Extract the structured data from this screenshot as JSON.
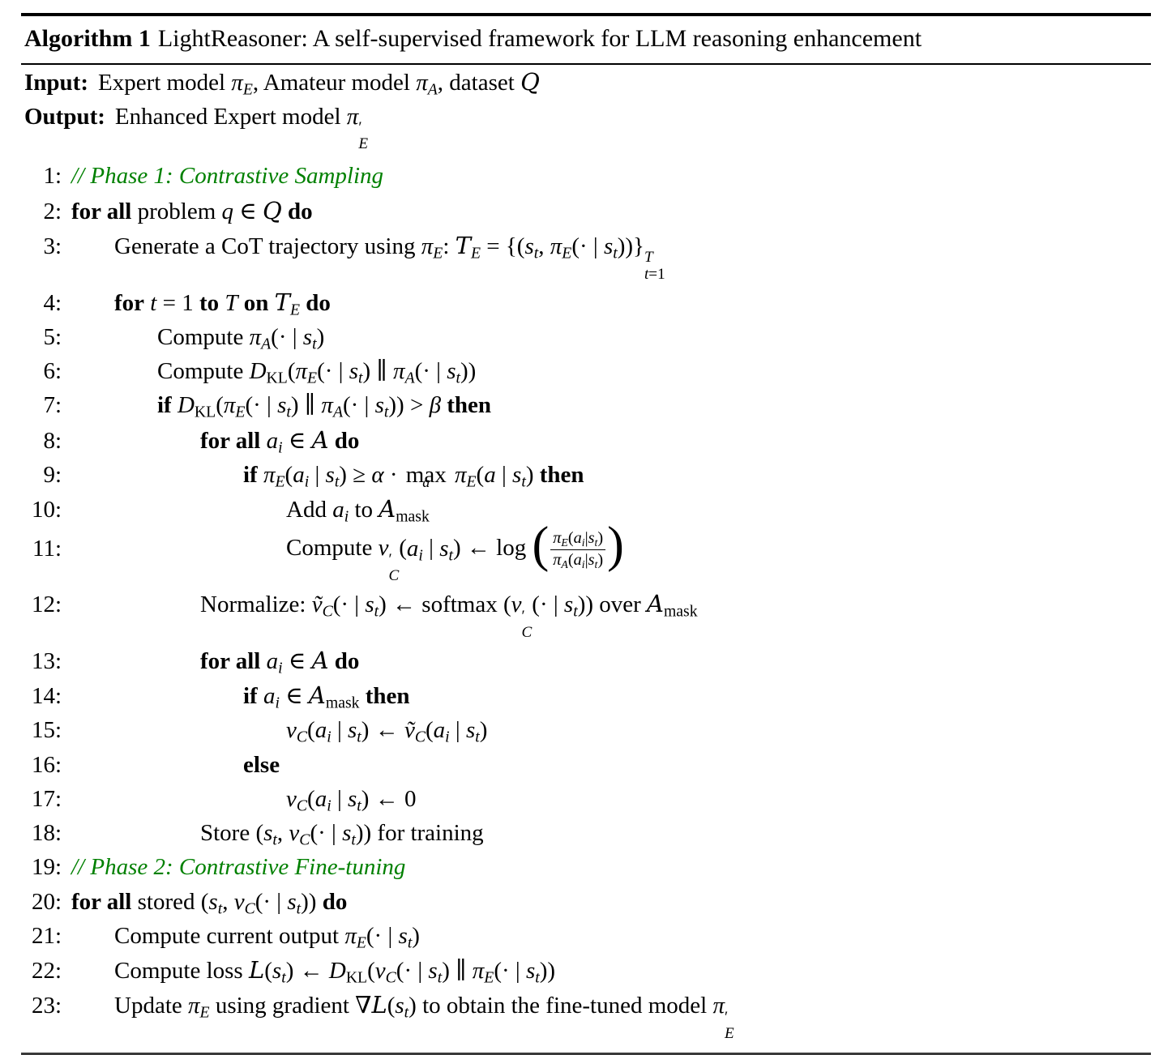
{
  "header": {
    "label": "Algorithm 1",
    "title": "LightReasoner: A self-supervised framework for LLM reasoning enhancement"
  },
  "io": {
    "input_label": "Input:",
    "input_html": "Expert model <i>π<sub>E</sub></i>, Amateur model <i>π<sub>A</sub></i>, dataset <span class='cal'>Q</span>",
    "output_label": "Output:",
    "output_html": "Enhanced Expert model <i>π</i><span class='ss'><span class='ss-t'>′</span><span class='ss-b'><i>E</i></span></span>"
  },
  "colors": {
    "comment_green": "#008000",
    "text": "#000000",
    "background": "#ffffff",
    "rule": "#000000"
  },
  "lines": [
    {
      "num": "1:",
      "indent": 0,
      "comment": true,
      "html": "// Phase 1: Contrastive Sampling"
    },
    {
      "num": "2:",
      "indent": 0,
      "comment": false,
      "html": "<b>for all</b> problem <i>q</i> ∈ <span class='cal'>Q</span> <b>do</b>"
    },
    {
      "num": "3:",
      "indent": 1,
      "comment": false,
      "html": "Generate a CoT trajectory using <i>π<sub>E</sub></i>: <span class='cal'>T</span><sub><i>E</i></sub> = {(<i>s<sub>t</sub></i>, <i>π<sub>E</sub></i>(· | <i>s<sub>t</sub></i>))}<span class='ss'><span class='ss-t'><i>T</i></span><span class='ss-b'><i>t</i>=1</span></span>"
    },
    {
      "num": "4:",
      "indent": 1,
      "comment": false,
      "html": "<b>for</b> <i>t</i> = 1 <b>to</b> <i>T</i> <b>on</b> <span class='cal'>T</span><sub><i>E</i></sub> <b>do</b>"
    },
    {
      "num": "5:",
      "indent": 2,
      "comment": false,
      "html": "Compute <i>π<sub>A</sub></i>(· | <i>s<sub>t</sub></i>)"
    },
    {
      "num": "6:",
      "indent": 2,
      "comment": false,
      "html": "Compute <i>D</i><sub>KL</sub>(<i>π<sub>E</sub></i>(· | <i>s<sub>t</sub></i>) ∥ <i>π<sub>A</sub></i>(· | <i>s<sub>t</sub></i>))"
    },
    {
      "num": "7:",
      "indent": 2,
      "comment": false,
      "html": "<b>if</b> <i>D</i><sub>KL</sub>(<i>π<sub>E</sub></i>(· | <i>s<sub>t</sub></i>) ∥ <i>π<sub>A</sub></i>(· | <i>s<sub>t</sub></i>)) &gt; <i>β</i> <b>then</b>"
    },
    {
      "num": "8:",
      "indent": 3,
      "comment": false,
      "html": "<b>for all</b> <i>a<sub>i</sub></i> ∈ <span class='cal'>A</span> <b>do</b>"
    },
    {
      "num": "9:",
      "indent": 4,
      "comment": false,
      "html": "<b>if</b> <i>π<sub>E</sub></i>(<i>a<sub>i</sub></i> | <i>s<sub>t</sub></i>) ≥ <i>α</i> · <span class='underop'><span class='uo-t'>max</span><span class='uo-b'><i>a</i></span></span> <i>π<sub>E</sub></i>(<i>a</i> | <i>s<sub>t</sub></i>) <b>then</b>"
    },
    {
      "num": "10:",
      "indent": 5,
      "comment": false,
      "html": "Add <i>a<sub>i</sub></i> to <span class='cal'>A</span><sub>mask</sub>"
    },
    {
      "num": "11:",
      "indent": 5,
      "comment": false,
      "html": "Compute <i>v</i><span class='ss'><span class='ss-t'>′</span><span class='ss-b'><i>C</i></span></span>(<i>a<sub>i</sub></i> | <i>s<sub>t</sub></i>) ← log <span class='bp'>(</span><span class='frac'><span class='fr-n'><i>π<sub>E</sub></i>(<i>a<sub>i</sub></i>|<i>s<sub>t</sub></i>)</span><span class='fr-d'><i>π<sub>A</sub></i>(<i>a<sub>i</sub></i>|<i>s<sub>t</sub></i>)</span></span><span class='bp'>)</span>"
    },
    {
      "num": "12:",
      "indent": 3,
      "comment": false,
      "html": "Normalize: <i>ṽ<sub>C</sub></i>(· | <i>s<sub>t</sub></i>) ← softmax (<i>v</i><span class='ss'><span class='ss-t'>′</span><span class='ss-b'><i>C</i></span></span>(· | <i>s<sub>t</sub></i>)) over <span class='cal'>A</span><sub>mask</sub>"
    },
    {
      "num": "13:",
      "indent": 3,
      "comment": false,
      "html": "<b>for all</b> <i>a<sub>i</sub></i> ∈ <span class='cal'>A</span> <b>do</b>"
    },
    {
      "num": "14:",
      "indent": 4,
      "comment": false,
      "html": "<b>if</b> <i>a<sub>i</sub></i> ∈ <span class='cal'>A</span><sub>mask</sub> <b>then</b>"
    },
    {
      "num": "15:",
      "indent": 5,
      "comment": false,
      "html": "<i>v<sub>C</sub></i>(<i>a<sub>i</sub></i> | <i>s<sub>t</sub></i>) ← <i>ṽ<sub>C</sub></i>(<i>a<sub>i</sub></i> | <i>s<sub>t</sub></i>)"
    },
    {
      "num": "16:",
      "indent": 4,
      "comment": false,
      "html": "<b>else</b>"
    },
    {
      "num": "17:",
      "indent": 5,
      "comment": false,
      "html": "<i>v<sub>C</sub></i>(<i>a<sub>i</sub></i> | <i>s<sub>t</sub></i>) ← 0"
    },
    {
      "num": "18:",
      "indent": 3,
      "comment": false,
      "html": "Store (<i>s<sub>t</sub></i>, <i>v<sub>C</sub></i>(· | <i>s<sub>t</sub></i>)) for training"
    },
    {
      "num": "19:",
      "indent": 0,
      "comment": true,
      "html": "// Phase 2: Contrastive Fine-tuning"
    },
    {
      "num": "20:",
      "indent": 0,
      "comment": false,
      "html": "<b>for all</b> stored (<i>s<sub>t</sub></i>, <i>v<sub>C</sub></i>(· | <i>s<sub>t</sub></i>)) <b>do</b>"
    },
    {
      "num": "21:",
      "indent": 1,
      "comment": false,
      "html": "Compute current output <i>π<sub>E</sub></i>(· | <i>s<sub>t</sub></i>)"
    },
    {
      "num": "22:",
      "indent": 1,
      "comment": false,
      "html": "Compute loss <span class='cal'>L</span>(<i>s<sub>t</sub></i>) ← <i>D</i><sub>KL</sub>(<i>v<sub>C</sub></i>(· | <i>s<sub>t</sub></i>) ∥ <i>π<sub>E</sub></i>(· | <i>s<sub>t</sub></i>))"
    },
    {
      "num": "23:",
      "indent": 1,
      "comment": false,
      "html": "Update <i>π<sub>E</sub></i> using gradient ∇<span class='cal'>L</span>(<i>s<sub>t</sub></i>) to obtain the fine-tuned model <i>π</i><span class='ss'><span class='ss-t'>′</span><span class='ss-b'><i>E</i></span></span>"
    }
  ]
}
